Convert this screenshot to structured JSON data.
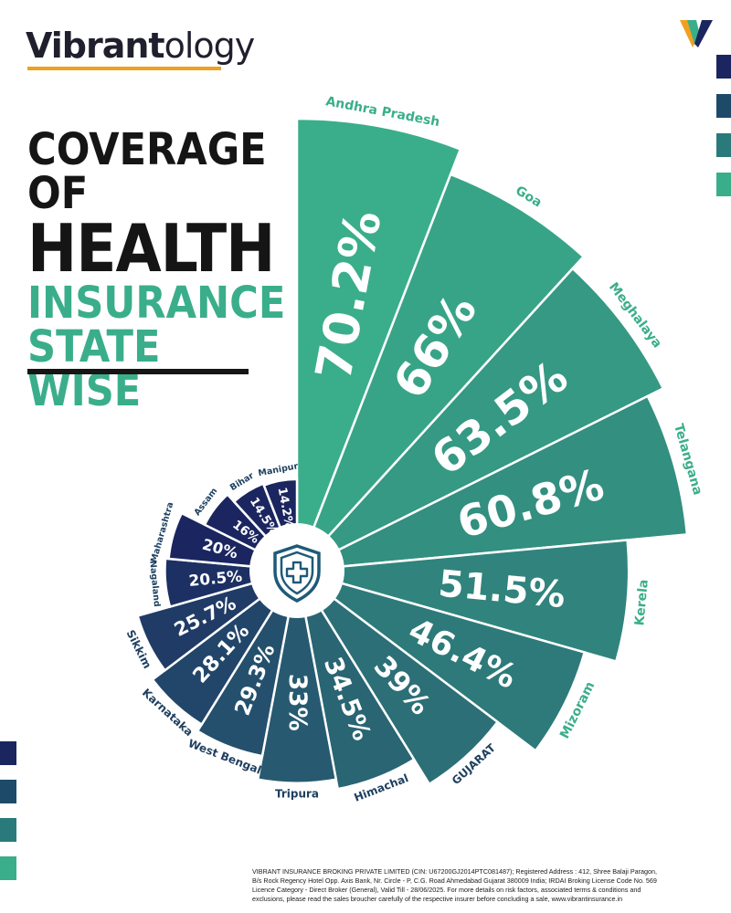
{
  "brand": {
    "name_bold": "Vibrant",
    "name_light": "ology"
  },
  "title": {
    "line1": "COVERAGE OF",
    "line2": "HEALTH",
    "line3": "INSURANCE",
    "line4": "STATE WISE"
  },
  "colors": {
    "dark_navy": "#1b2660",
    "teal": "#3aae8a",
    "orange": "#f0a020",
    "text_dark": "#151515"
  },
  "icon": "shield-medical-cross-icon",
  "footer": {
    "line1": "VIBRANT INSURANCE BROKING PRIVATE LIMITED (CIN: U67200GJ2014PTC081487); Registered Address : 412, Shree Balaji Paragon,",
    "line2": "B/s Rock Regency Hotel Opp. Axis Bank, Nr. Circle - P, C.G. Road Ahmedabad Gujarat 380009 India; IRDAI Broking License Code No. 569",
    "line3": "Licence Category - Direct Broker (General), Valid Till - 28/06/2025. For more details on risk factors, associated terms & conditions and",
    "line4": "exclusions, please read the sales broucher carefully of the  respective insurer before concluding a sale, www.vibrantinsurance.in"
  },
  "chart_data": {
    "type": "bar",
    "title": "COVERAGE OF HEALTH INSURANCE STATE WISE",
    "categories": [
      "Andhra Pradesh",
      "Goa",
      "Meghalaya",
      "Telangana",
      "Kerela",
      "Mizoram",
      "GUJARAT",
      "Himachal",
      "Tripura",
      "West Bengal",
      "Karnataka",
      "Sikkim",
      "Nagaland",
      "Maharashtra",
      "Assam",
      "Bihar",
      "Manipur"
    ],
    "labels": [
      "70.2%",
      "66%",
      "63.5%",
      "60.8%",
      "51.5%",
      "46.4%",
      "39%",
      "34.5%",
      "33%",
      "29.3%",
      "28.1%",
      "25.7%",
      "20.5%",
      "20%",
      "16%",
      "14.5%",
      "14.2%"
    ],
    "values": [
      70.2,
      66,
      63.5,
      60.8,
      51.5,
      46.4,
      39,
      34.5,
      33,
      29.3,
      28.1,
      25.7,
      20.5,
      20,
      16,
      14.5,
      14.2
    ],
    "unit": "%"
  }
}
